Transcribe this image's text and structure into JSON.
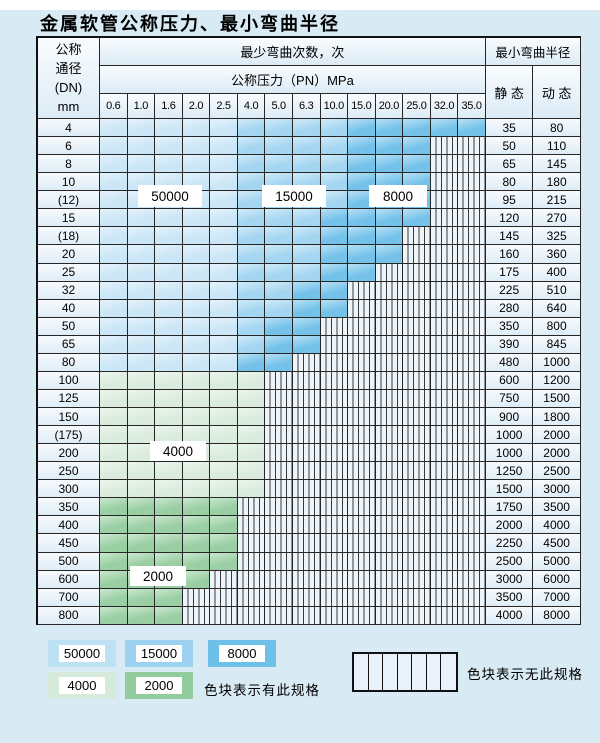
{
  "title": "金属软管公称压力、最小弯曲半径",
  "table": {
    "header": {
      "dn_lines": [
        "公称",
        "通径",
        "(DN)",
        "mm"
      ],
      "bend_cycles": "最少弯曲次数，次",
      "pressure": "公称压力（PN）MPa",
      "min_bend_radius": "最小弯曲半径",
      "static": "静 态",
      "dynamic": "动 态",
      "pressures": [
        "0.6",
        "1.0",
        "1.6",
        "2.0",
        "2.5",
        "4.0",
        "5.0",
        "6.3",
        "10.0",
        "15.0",
        "20.0",
        "25.0",
        "32.0",
        "35.0"
      ]
    },
    "rows": [
      {
        "dn": "4",
        "st": "35",
        "dy": "80",
        "last": 13,
        "dark": 9,
        "fam": "b"
      },
      {
        "dn": "6",
        "st": "50",
        "dy": "110",
        "last": 11,
        "dark": 9,
        "fam": "b"
      },
      {
        "dn": "8",
        "st": "65",
        "dy": "145",
        "last": 11,
        "dark": 9,
        "fam": "b"
      },
      {
        "dn": "10",
        "st": "80",
        "dy": "180",
        "last": 11,
        "dark": 9,
        "fam": "b"
      },
      {
        "dn": "(12)",
        "st": "95",
        "dy": "215",
        "last": 11,
        "dark": 9,
        "fam": "b"
      },
      {
        "dn": "15",
        "st": "120",
        "dy": "270",
        "last": 11,
        "dark": 8,
        "fam": "b"
      },
      {
        "dn": "(18)",
        "st": "145",
        "dy": "325",
        "last": 10,
        "dark": 8,
        "fam": "b"
      },
      {
        "dn": "20",
        "st": "160",
        "dy": "360",
        "last": 10,
        "dark": 8,
        "fam": "b"
      },
      {
        "dn": "25",
        "st": "175",
        "dy": "400",
        "last": 9,
        "dark": 8,
        "fam": "b"
      },
      {
        "dn": "32",
        "st": "225",
        "dy": "510",
        "last": 8,
        "dark": 7,
        "fam": "b"
      },
      {
        "dn": "40",
        "st": "280",
        "dy": "640",
        "last": 8,
        "dark": 7,
        "fam": "b"
      },
      {
        "dn": "50",
        "st": "350",
        "dy": "800",
        "last": 7,
        "dark": 6,
        "fam": "b"
      },
      {
        "dn": "65",
        "st": "390",
        "dy": "845",
        "last": 7,
        "dark": 6,
        "fam": "b"
      },
      {
        "dn": "80",
        "st": "480",
        "dy": "1000",
        "last": 6,
        "dark": 5,
        "fam": "b"
      },
      {
        "dn": "100",
        "st": "600",
        "dy": "1200",
        "last": 5,
        "fam": "g4"
      },
      {
        "dn": "125",
        "st": "750",
        "dy": "1500",
        "last": 5,
        "fam": "g4"
      },
      {
        "dn": "150",
        "st": "900",
        "dy": "1800",
        "last": 5,
        "fam": "g4"
      },
      {
        "dn": "(175)",
        "st": "1000",
        "dy": "2000",
        "last": 5,
        "fam": "g4"
      },
      {
        "dn": "200",
        "st": "1000",
        "dy": "2000",
        "last": 5,
        "fam": "g4"
      },
      {
        "dn": "250",
        "st": "1250",
        "dy": "2500",
        "last": 5,
        "fam": "g4"
      },
      {
        "dn": "300",
        "st": "1500",
        "dy": "3000",
        "last": 5,
        "fam": "g4"
      },
      {
        "dn": "350",
        "st": "1750",
        "dy": "3500",
        "last": 4,
        "fam": "g2"
      },
      {
        "dn": "400",
        "st": "2000",
        "dy": "4000",
        "last": 4,
        "fam": "g2"
      },
      {
        "dn": "450",
        "st": "2250",
        "dy": "4500",
        "last": 4,
        "fam": "g2"
      },
      {
        "dn": "500",
        "st": "2500",
        "dy": "5000",
        "last": 4,
        "fam": "g2"
      },
      {
        "dn": "600",
        "st": "3000",
        "dy": "6000",
        "last": 3,
        "fam": "g2"
      },
      {
        "dn": "700",
        "st": "3500",
        "dy": "7000",
        "last": 2,
        "fam": "g2"
      },
      {
        "dn": "800",
        "st": "4000",
        "dy": "8000",
        "last": 2,
        "fam": "g2"
      }
    ]
  },
  "zone_labels": [
    {
      "text": "50000"
    },
    {
      "text": "15000"
    },
    {
      "text": "8000"
    },
    {
      "text": "4000"
    },
    {
      "text": "2000"
    }
  ],
  "legend": {
    "swatches": [
      {
        "label": "50000",
        "color": "#bfe1f4"
      },
      {
        "label": "15000",
        "color": "#9cd2f0"
      },
      {
        "label": "8000",
        "color": "#6fc0e9"
      },
      {
        "label": "4000",
        "color": "#d5eada"
      },
      {
        "label": "2000",
        "color": "#92cc9d"
      }
    ],
    "has_spec": "色块表示有此规格",
    "no_spec": "色块表示无此规格"
  },
  "colors": {
    "zone_50000": "#cbe6f6",
    "zone_15000": "#a4d6f1",
    "zone_8000": "#74c2ea",
    "zone_4000": "#daecdd",
    "zone_2000": "#99cfa3",
    "hatch_cell": "#edf4fa",
    "grid_line": "#262626",
    "page_bg": "#d8eaf4"
  }
}
